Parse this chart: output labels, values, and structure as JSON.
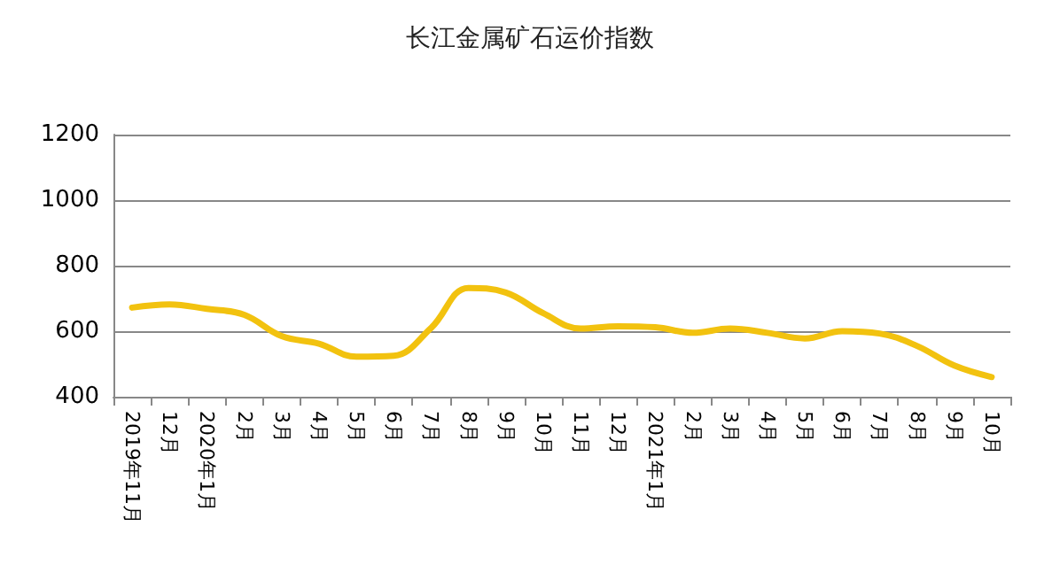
{
  "chart_data": {
    "type": "line",
    "title": "长江金属矿石运价指数",
    "categories": [
      "2019年11月",
      "12月",
      "2020年1月",
      "2月",
      "3月",
      "4月",
      "5月",
      "6月",
      "7月",
      "8月",
      "9月",
      "10月",
      "11月",
      "12月",
      "2021年1月",
      "2月",
      "3月",
      "4月",
      "5月",
      "6月",
      "7月",
      "8月",
      "9月",
      "10月"
    ],
    "series": [
      {
        "color": "#f2c20f",
        "values": [
          672,
          682,
          668,
          650,
          585,
          562,
          522,
          525,
          610,
          732,
          718,
          655,
          608,
          615,
          612,
          595,
          608,
          595,
          578,
          600,
          593,
          555,
          495,
          460
        ]
      }
    ],
    "ylim": [
      400,
      1200
    ],
    "yticks": [
      400,
      600,
      800,
      1000,
      1200
    ],
    "grid": "y",
    "marker": "none",
    "line_style": "solid"
  }
}
